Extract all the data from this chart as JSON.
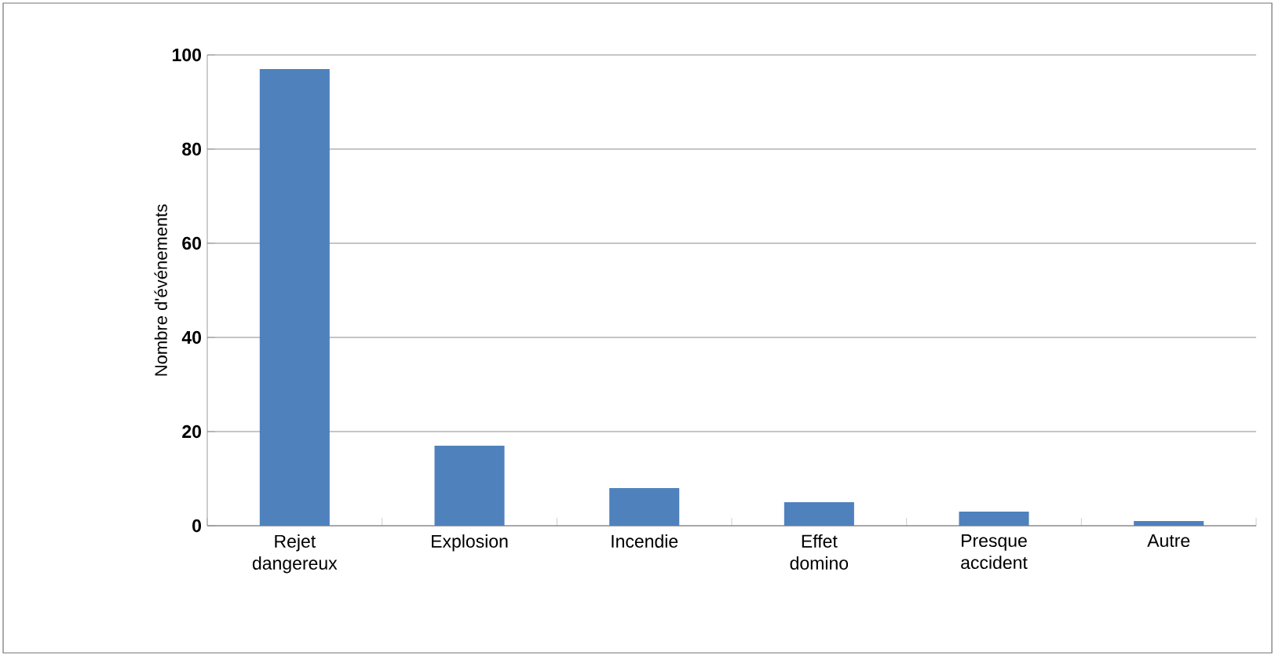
{
  "chart_data": {
    "type": "bar",
    "ylabel": "Nombre d'événements",
    "categories": [
      "Rejet dangereux",
      "Explosion",
      "Incendie",
      "Effet domino",
      "Presque accident",
      "Autre"
    ],
    "values": [
      97,
      17,
      8,
      5,
      3,
      1
    ],
    "color": "#4f81bd",
    "ylim": [
      0,
      100
    ],
    "yticks": [
      0,
      20,
      40,
      60,
      80,
      100
    ],
    "grid": "y"
  }
}
